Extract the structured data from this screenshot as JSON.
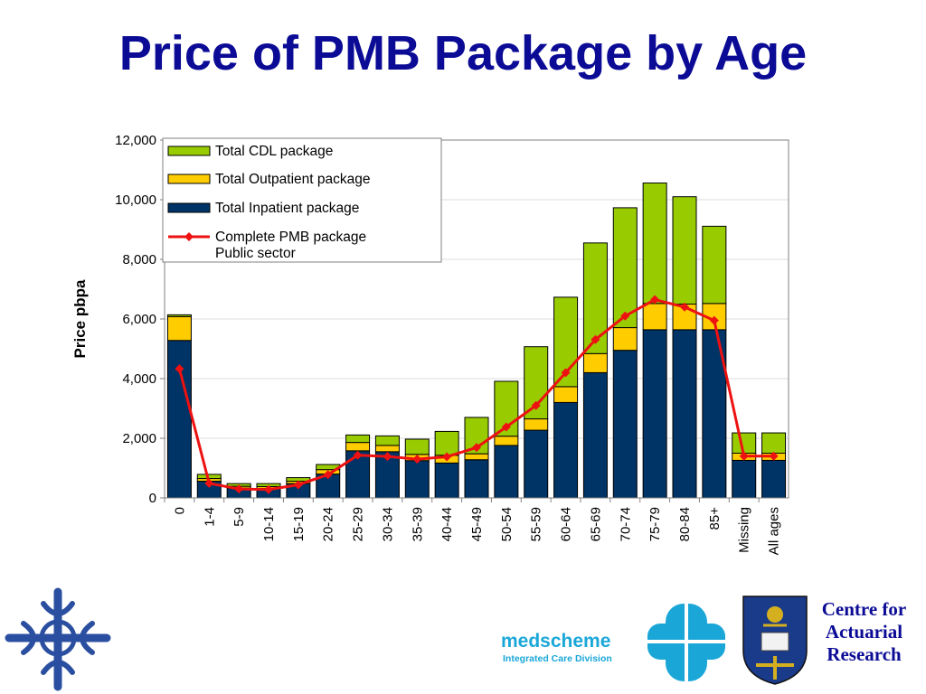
{
  "title": "Price of PMB Package by Age",
  "chart_data": {
    "type": "bar",
    "stacked": true,
    "ylabel": "Price pbpa",
    "xlabel": "",
    "ylim": [
      0,
      12000
    ],
    "yticks": [
      "0",
      "2,000",
      "4,000",
      "6,000",
      "8,000",
      "10,000",
      "12,000"
    ],
    "ytick_values": [
      0,
      2000,
      4000,
      6000,
      8000,
      10000,
      12000
    ],
    "grid": true,
    "legend_position": "top-left",
    "categories": [
      "0",
      "1-4",
      "5-9",
      "10-14",
      "15-19",
      "20-24",
      "25-29",
      "30-34",
      "35-39",
      "40-44",
      "45-49",
      "50-54",
      "55-59",
      "60-64",
      "65-69",
      "70-74",
      "75-79",
      "80-84",
      "85+",
      "Missing",
      "All ages"
    ],
    "series": [
      {
        "name": "Total Inpatient package",
        "kind": "bar",
        "color": "#003366",
        "values": [
          5280,
          560,
          330,
          320,
          480,
          800,
          1580,
          1550,
          1250,
          1170,
          1280,
          1760,
          2270,
          3200,
          4200,
          4950,
          5640,
          5640,
          5640,
          1260,
          1260
        ]
      },
      {
        "name": "Total Outpatient package",
        "kind": "bar",
        "color": "#ffcc00",
        "values": [
          800,
          90,
          60,
          60,
          80,
          150,
          280,
          210,
          210,
          260,
          200,
          310,
          380,
          530,
          640,
          760,
          880,
          860,
          880,
          240,
          240
        ]
      },
      {
        "name": "Total CDL package",
        "kind": "bar",
        "color": "#99cc00",
        "values": [
          60,
          140,
          90,
          100,
          120,
          170,
          250,
          320,
          510,
          800,
          1220,
          1840,
          2420,
          3000,
          3710,
          4020,
          4040,
          3600,
          2590,
          680,
          680
        ]
      },
      {
        "name": "Complete PMB package Public sector",
        "kind": "line",
        "color": "#ee1111",
        "values": [
          4330,
          490,
          300,
          280,
          440,
          780,
          1430,
          1390,
          1300,
          1380,
          1690,
          2380,
          3100,
          4200,
          5310,
          6100,
          6650,
          6400,
          5950,
          1400,
          1400
        ]
      }
    ],
    "legend_order": [
      "Total CDL package",
      "Total Outpatient package",
      "Total Inpatient package",
      "Complete PMB package Public sector"
    ],
    "legend_line_split": [
      "Complete PMB package",
      "Public sector"
    ]
  },
  "logos": {
    "medscheme": {
      "name": "medscheme",
      "subtitle": "Integrated Care Division",
      "color": "#1aa7d8",
      "icon": "medscheme-cross-icon"
    },
    "left_emblem": {
      "icon": "celtic-cross-emblem-icon",
      "color": "#2b4fa0"
    },
    "car": {
      "line1": "Centre for",
      "line2": "Actuarial",
      "line3": "Research",
      "icon": "university-crest-icon",
      "color": "#0b0b96"
    }
  }
}
